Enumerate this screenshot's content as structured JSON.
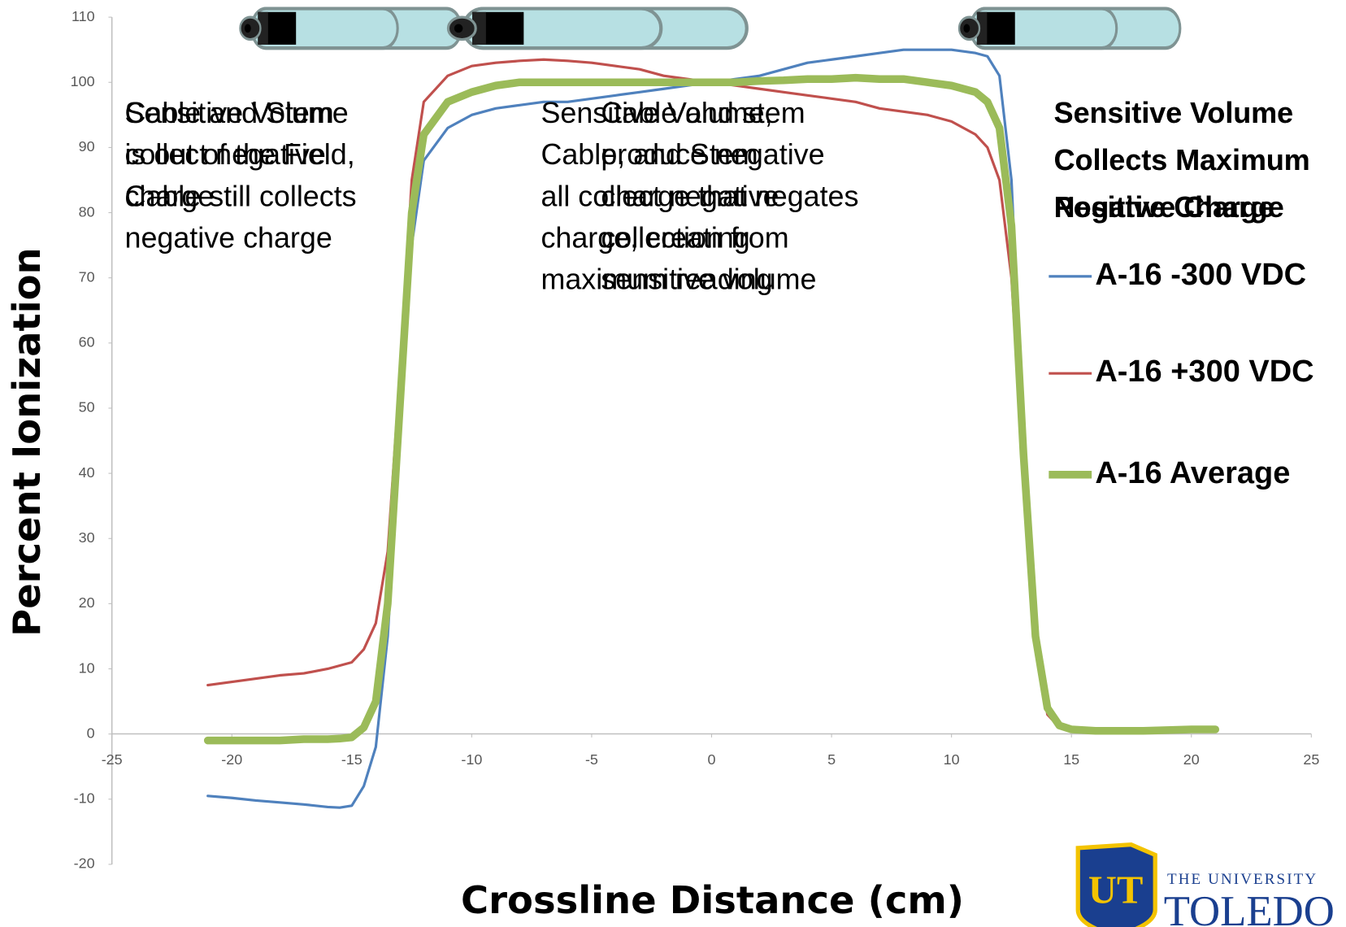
{
  "chart_data": {
    "type": "line",
    "x_label": "Crossline Distance (cm)",
    "y_label": "Percent Ionization",
    "xlim": [
      -25,
      25
    ],
    "xticks": [
      -25,
      -20,
      -15,
      -10,
      -5,
      0,
      5,
      10,
      15,
      20,
      25
    ],
    "ylim": [
      -20,
      110
    ],
    "yticks": [
      -20,
      -10,
      0,
      10,
      20,
      30,
      40,
      50,
      60,
      70,
      80,
      90,
      100,
      110
    ],
    "grid": false,
    "legend": "right",
    "x": [
      -21,
      -20,
      -19,
      -18,
      -17,
      -16,
      -15.5,
      -15,
      -14.5,
      -14,
      -13.5,
      -13,
      -12.5,
      -12,
      -11,
      -10,
      -9,
      -8,
      -7,
      -6,
      -5,
      -4,
      -3,
      -2,
      -1,
      0,
      1,
      2,
      3,
      4,
      5,
      6,
      7,
      8,
      9,
      10,
      11,
      11.5,
      12,
      12.5,
      13,
      13.5,
      14,
      14.5,
      15,
      16,
      17,
      18,
      19,
      20,
      21
    ],
    "series": [
      {
        "name": "A-16 -300 VDC",
        "color": "#4f81bd",
        "width": 3,
        "values": [
          -9.5,
          -9.8,
          -10.2,
          -10.5,
          -10.8,
          -11.2,
          -11.3,
          -11,
          -8,
          -2,
          15,
          45,
          75,
          88,
          93,
          95,
          96,
          96.5,
          97,
          97,
          97.5,
          98,
          98.5,
          99,
          99.5,
          100,
          100.5,
          101,
          102,
          103,
          103.5,
          104,
          104.5,
          105,
          105,
          105,
          104.5,
          104,
          101,
          85,
          45,
          15,
          4,
          1.5,
          0.8,
          0.5,
          0.5,
          0.5,
          0.6,
          0.7,
          0.8
        ]
      },
      {
        "name": "A-16 +300 VDC",
        "color": "#c0504d",
        "width": 3,
        "values": [
          7.5,
          8,
          8.5,
          9,
          9.3,
          10,
          10.5,
          11,
          13,
          17,
          28,
          55,
          85,
          97,
          101,
          102.5,
          103,
          103.3,
          103.5,
          103.3,
          103,
          102.5,
          102,
          101,
          100.5,
          100,
          99.5,
          99,
          98.5,
          98,
          97.5,
          97,
          96,
          95.5,
          95,
          94,
          92,
          90,
          85,
          70,
          40,
          15,
          3,
          1,
          0.5,
          0.5,
          0.5,
          0.5,
          0.6,
          0.7,
          0.8
        ]
      },
      {
        "name": "A-16 Average",
        "color": "#9bbb59",
        "width": 9,
        "values": [
          -1,
          -1,
          -1,
          -1,
          -0.8,
          -0.8,
          -0.7,
          -0.5,
          1,
          5,
          20,
          50,
          80,
          92,
          97,
          98.5,
          99.5,
          100,
          100,
          100,
          100,
          100,
          100,
          100,
          100,
          100,
          100,
          100.2,
          100.3,
          100.5,
          100.5,
          100.7,
          100.5,
          100.5,
          100,
          99.5,
          98.5,
          97,
          93,
          78,
          43,
          15,
          4,
          1.3,
          0.7,
          0.5,
          0.5,
          0.5,
          0.6,
          0.7,
          0.7
        ]
      }
    ],
    "annotations": [
      {
        "lines": [
          "Sensitive Volume",
          "is out of the Field,",
          "Cable still collects",
          "negative charge"
        ]
      },
      {
        "lines": [
          "Cable and Stem",
          "collect negative",
          "charge"
        ]
      },
      {
        "lines": [
          "Sensitive Volume,",
          "Cable, and Stem",
          "all collect negative",
          "charge, creating",
          "maximum reading"
        ]
      },
      {
        "lines": [
          "Cable and stem",
          "produce negative",
          "charge that negates",
          "collection from",
          "sensitive volume"
        ]
      },
      {
        "lines": [
          "Sensitive Volume",
          "Collects Maximum",
          "Positive Charge"
        ]
      },
      {
        "lines": [
          "Sensitive Volume",
          "Collects Maximum",
          "Negative Charge"
        ]
      }
    ]
  },
  "logo": {
    "initials": "UT",
    "line1": "THE UNIVERSITY",
    "line2": "TOLEDO"
  }
}
